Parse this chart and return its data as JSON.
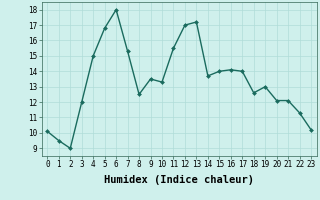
{
  "x": [
    0,
    1,
    2,
    3,
    4,
    5,
    6,
    7,
    8,
    9,
    10,
    11,
    12,
    13,
    14,
    15,
    16,
    17,
    18,
    19,
    20,
    21,
    22,
    23
  ],
  "y": [
    10.1,
    9.5,
    9.0,
    12.0,
    15.0,
    16.8,
    18.0,
    15.3,
    12.5,
    13.5,
    13.3,
    15.5,
    17.0,
    17.2,
    13.7,
    14.0,
    14.1,
    14.0,
    12.6,
    13.0,
    12.1,
    12.1,
    11.3,
    10.2
  ],
  "line_color": "#1a6b5e",
  "marker": "D",
  "marker_size": 2.0,
  "bg_color": "#cff0ec",
  "grid_color": "#b0ddd8",
  "xlabel": "Humidex (Indice chaleur)",
  "ylabel_ticks": [
    9,
    10,
    11,
    12,
    13,
    14,
    15,
    16,
    17,
    18
  ],
  "xlabel_ticks": [
    0,
    1,
    2,
    3,
    4,
    5,
    6,
    7,
    8,
    9,
    10,
    11,
    12,
    13,
    14,
    15,
    16,
    17,
    18,
    19,
    20,
    21,
    22,
    23
  ],
  "xlim": [
    -0.5,
    23.5
  ],
  "ylim": [
    8.5,
    18.5
  ],
  "xlabel_fontsize": 7.5,
  "tick_fontsize": 5.5,
  "linewidth": 1.0
}
